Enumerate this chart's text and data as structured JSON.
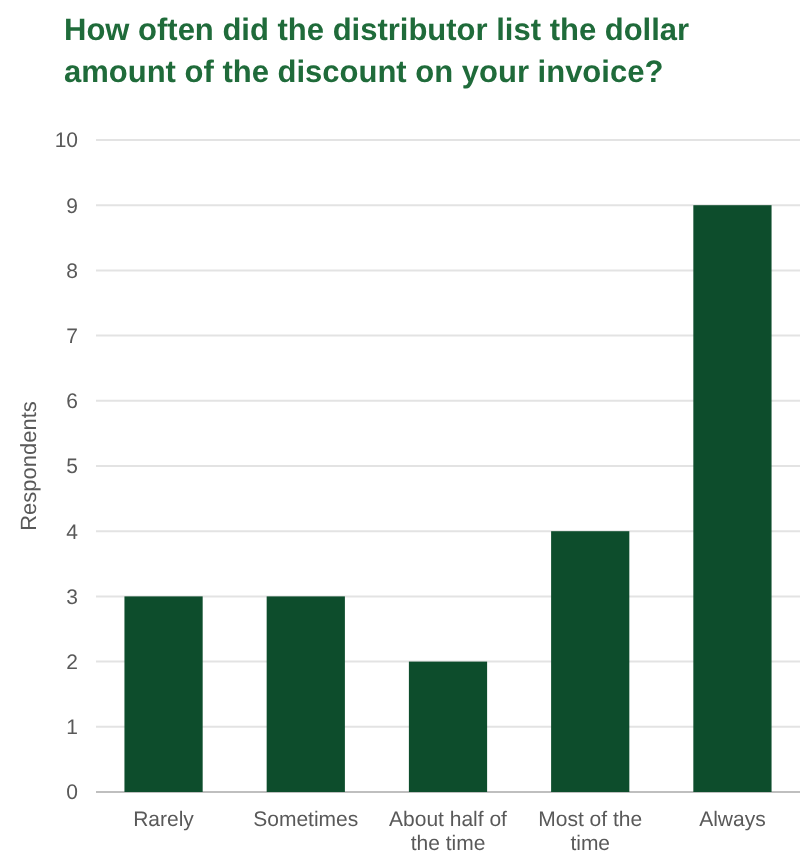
{
  "chart_data": {
    "type": "bar",
    "title": "How often did the distributor list the dollar amount of the discount on your invoice?",
    "ylabel": "Respondents",
    "categories": [
      "Rarely",
      "Sometimes",
      "About half of the time",
      "Most of the time",
      "Always"
    ],
    "values": [
      3,
      3,
      2,
      4,
      9
    ],
    "color": "#0d4d2c",
    "ylim": [
      0,
      10
    ],
    "yticks": [
      0,
      1,
      2,
      3,
      4,
      5,
      6,
      7,
      8,
      9,
      10
    ],
    "grid": "y"
  }
}
